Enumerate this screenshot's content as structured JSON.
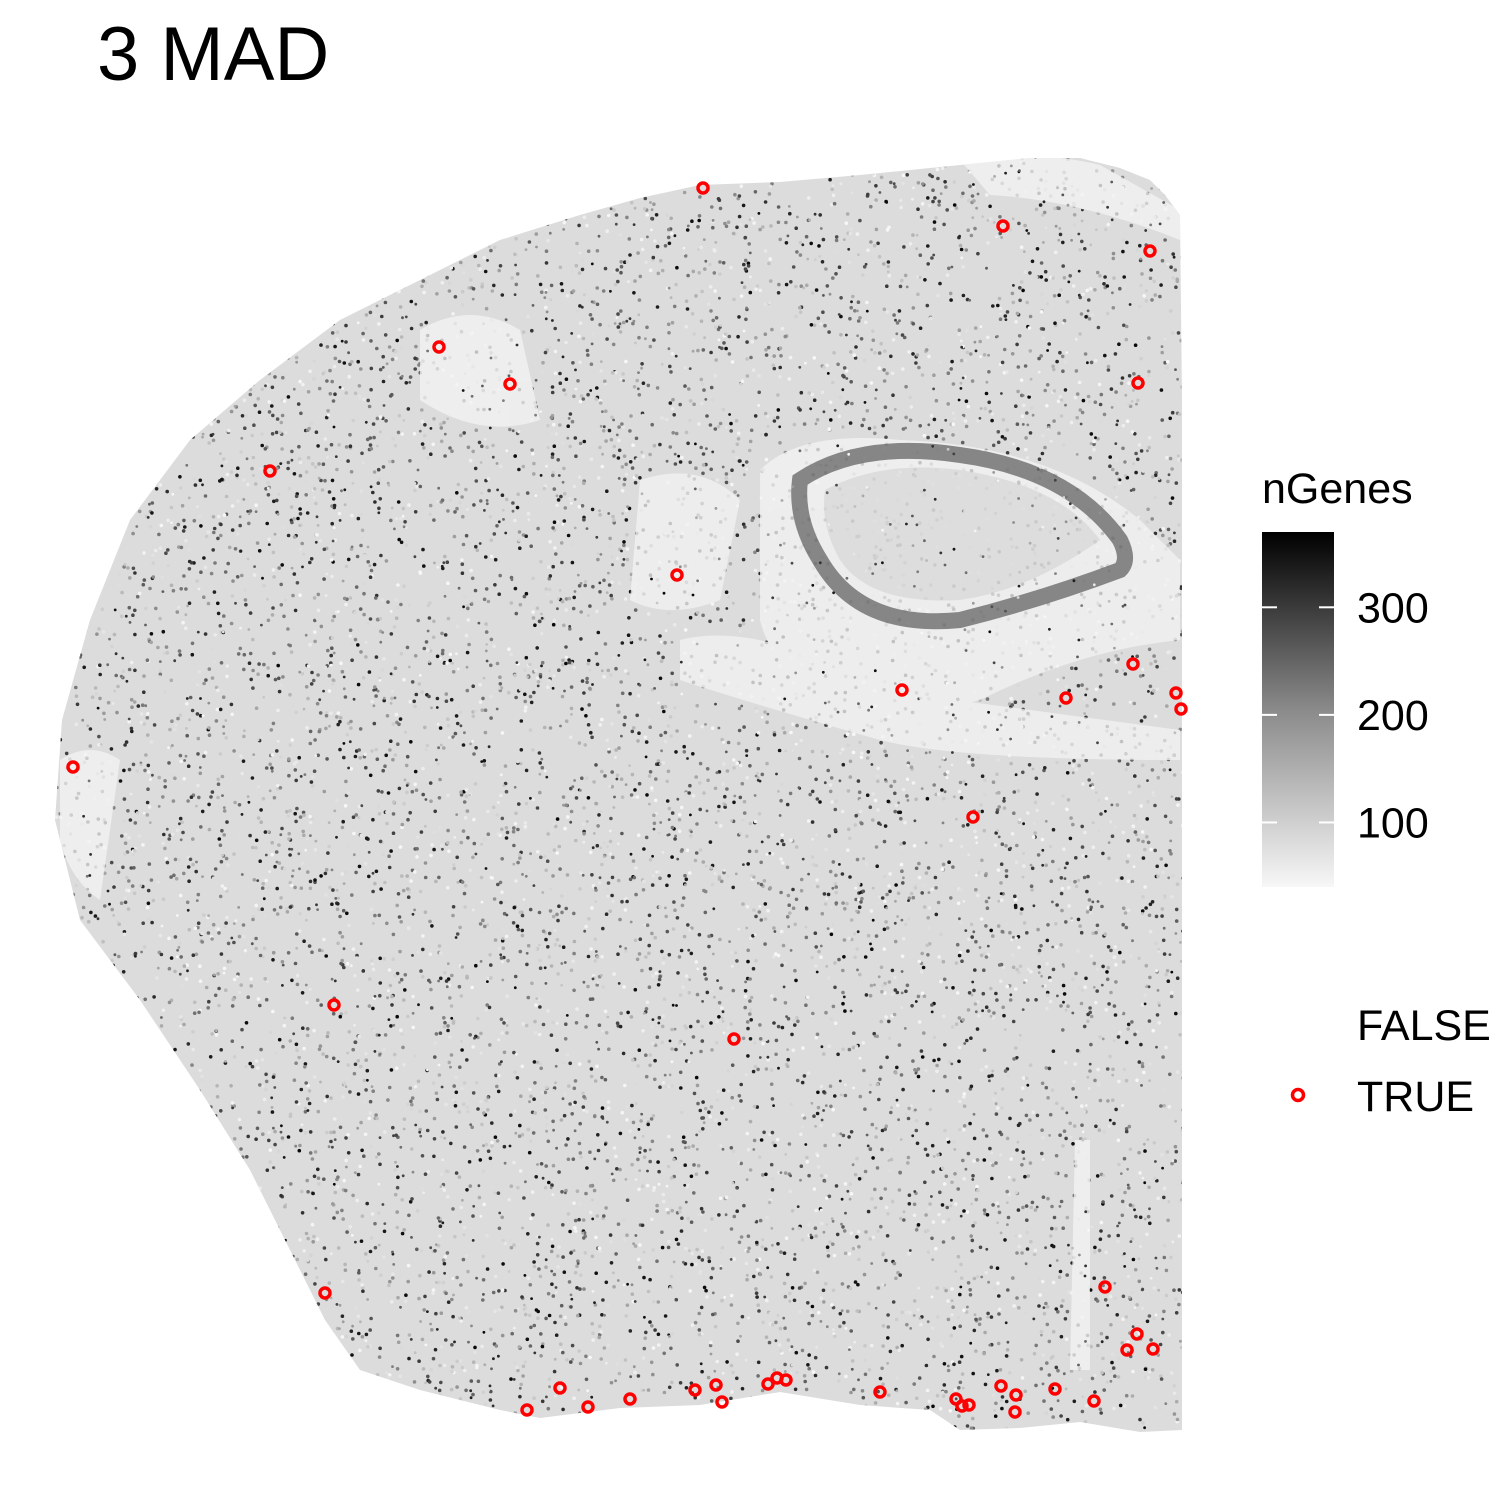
{
  "chart_data": {
    "type": "scatter",
    "title": "3 MAD",
    "xlabel": "",
    "ylabel": "",
    "grid": false,
    "axes_visible": false,
    "colorbar": {
      "title": "nGenes",
      "range": [
        40,
        370
      ],
      "ticks": [
        100,
        200,
        300
      ],
      "tick_labels": [
        "100",
        "200",
        "300"
      ],
      "color_low": "#f7f7f7",
      "color_high": "#000000"
    },
    "legend": {
      "placement": "right",
      "entries": [
        {
          "label": "FALSE",
          "marker": "none"
        },
        {
          "label": "TRUE",
          "marker": "circle-open",
          "color": "#ff0000"
        }
      ]
    },
    "background_points": {
      "description_series": "FALSE",
      "approx_count": 60000,
      "value_range": [
        40,
        370
      ]
    },
    "outliers": {
      "name": "TRUE",
      "color": "#ff0000",
      "x": [
        703,
        1003,
        1150,
        439,
        510,
        1138,
        270,
        677,
        1133,
        902,
        1066,
        1176,
        1181,
        73,
        973,
        334,
        734,
        325,
        1105,
        1137,
        1127,
        1153,
        527,
        560,
        588,
        630,
        695,
        716,
        722,
        768,
        777,
        786,
        880,
        956,
        962,
        969,
        1001,
        1016,
        1015,
        1055,
        1094
      ],
      "y": [
        188,
        226,
        251,
        347,
        384,
        383,
        471,
        575,
        664,
        690,
        698,
        693,
        709,
        767,
        817,
        1005,
        1039,
        1293,
        1287,
        1334,
        1350,
        1349,
        1410,
        1388,
        1407,
        1399,
        1390,
        1385,
        1402,
        1384,
        1378,
        1380,
        1392,
        1399,
        1406,
        1405,
        1386,
        1395,
        1412,
        1389,
        1401
      ]
    }
  }
}
